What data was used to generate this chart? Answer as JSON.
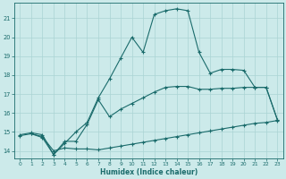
{
  "xlabel": "Humidex (Indice chaleur)",
  "bg_color": "#cceaea",
  "grid_color": "#aad4d4",
  "line_color": "#1a6b6b",
  "xlim": [
    -0.5,
    23.5
  ],
  "ylim": [
    13.6,
    21.8
  ],
  "xticks": [
    0,
    1,
    2,
    3,
    4,
    5,
    6,
    7,
    8,
    9,
    10,
    11,
    12,
    13,
    14,
    15,
    16,
    17,
    18,
    19,
    20,
    21,
    22,
    23
  ],
  "yticks": [
    14,
    15,
    16,
    17,
    18,
    19,
    20,
    21
  ],
  "line1_x": [
    0,
    1,
    2,
    3,
    4,
    5,
    6,
    7,
    8,
    9,
    10,
    11,
    12,
    13,
    14,
    15,
    16,
    17,
    18,
    19,
    20,
    21,
    22,
    23
  ],
  "line1_y": [
    14.8,
    14.9,
    14.75,
    14.0,
    14.15,
    14.1,
    14.1,
    14.05,
    14.15,
    14.25,
    14.35,
    14.45,
    14.55,
    14.65,
    14.75,
    14.85,
    14.95,
    15.05,
    15.15,
    15.25,
    15.35,
    15.45,
    15.5,
    15.6
  ],
  "line2_x": [
    0,
    1,
    2,
    3,
    4,
    5,
    6,
    7,
    8,
    9,
    10,
    11,
    12,
    13,
    14,
    15,
    16,
    17,
    18,
    19,
    20,
    21,
    22,
    23
  ],
  "line2_y": [
    14.85,
    14.95,
    14.85,
    13.8,
    14.5,
    14.5,
    15.4,
    16.7,
    15.8,
    16.2,
    16.5,
    16.8,
    17.1,
    17.35,
    17.4,
    17.4,
    17.25,
    17.25,
    17.3,
    17.3,
    17.35,
    17.35,
    17.35,
    15.65
  ],
  "line3_x": [
    1,
    2,
    3,
    4,
    5,
    6,
    7,
    8,
    9,
    10,
    11,
    12,
    13,
    14,
    15,
    16,
    17,
    18,
    19,
    20,
    21,
    22,
    23
  ],
  "line3_y": [
    14.9,
    14.7,
    13.8,
    14.4,
    15.0,
    15.5,
    16.8,
    17.8,
    18.9,
    20.0,
    19.2,
    21.2,
    21.4,
    21.5,
    21.4,
    19.2,
    18.1,
    18.3,
    18.3,
    18.25,
    17.35,
    17.35,
    15.65
  ]
}
